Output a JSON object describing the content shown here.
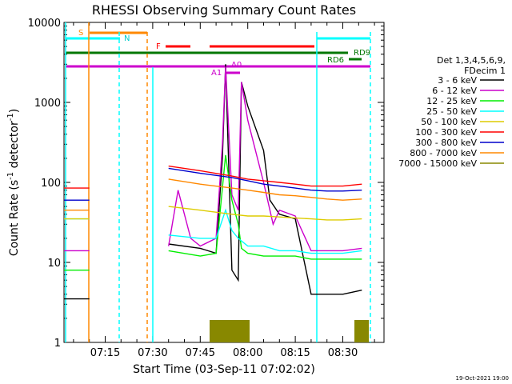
{
  "chart_data": {
    "type": "line",
    "title": "RHESSI Observing Summary Count Rates",
    "xlabel": "Start Time (03-Sep-11 07:02:02)",
    "ylabel_main": "Count Rate (s",
    "ylabel_sup1": "-1",
    "ylabel_mid": " detector",
    "ylabel_sup2": "-1",
    "ylabel_end": ")",
    "y_scale": "log",
    "ylim": [
      1,
      10000
    ],
    "xlim": [
      "07:02",
      "08:43"
    ],
    "grid": false,
    "x_ticks": [
      "07:15",
      "07:30",
      "07:45",
      "08:00",
      "08:15",
      "08:30"
    ],
    "y_ticks": [
      "1",
      "10",
      "100",
      "1000",
      "10000"
    ],
    "legend_header": [
      "Det 1,3,4,5,6,9,",
      "FDecim 1"
    ],
    "legend_position": "right",
    "timestamp": "19-Oct-2021 19:00",
    "series": [
      {
        "name": "3 - 6 keV",
        "color": "#000000",
        "x": [
          "07:02",
          "07:10",
          "07:28",
          "07:35",
          "07:45",
          "07:50",
          "07:52",
          "07:53",
          "07:55",
          "07:57",
          "07:58",
          "08:00",
          "08:05",
          "08:07",
          "08:10",
          "08:15",
          "08:20",
          "08:25",
          "08:30",
          "08:36"
        ],
        "values": [
          3.5,
          3.5,
          null,
          17,
          15,
          13,
          200,
          3000,
          8,
          6,
          1800,
          900,
          250,
          60,
          40,
          35,
          4,
          4,
          4,
          4.5
        ]
      },
      {
        "name": "6 - 12 keV",
        "color": "#cc00cc",
        "x": [
          "07:02",
          "07:10",
          "07:28",
          "07:35",
          "07:38",
          "07:42",
          "07:45",
          "07:50",
          "07:52",
          "07:53",
          "07:55",
          "07:57",
          "07:58",
          "08:00",
          "08:05",
          "08:08",
          "08:10",
          "08:15",
          "08:20",
          "08:25",
          "08:30",
          "08:36"
        ],
        "values": [
          14,
          14,
          null,
          16,
          80,
          20,
          16,
          20,
          300,
          2800,
          70,
          45,
          1800,
          600,
          100,
          30,
          45,
          38,
          14,
          14,
          14,
          15
        ]
      },
      {
        "name": "12 - 25 keV",
        "color": "#00ee00",
        "x": [
          "07:02",
          "07:10",
          "07:28",
          "07:35",
          "07:45",
          "07:50",
          "07:53",
          "07:55",
          "07:57",
          "07:58",
          "08:00",
          "08:05",
          "08:10",
          "08:15",
          "08:20",
          "08:25",
          "08:30",
          "08:36"
        ],
        "values": [
          8,
          8,
          null,
          14,
          12,
          13,
          220,
          60,
          30,
          15,
          13,
          12,
          12,
          12,
          11,
          11,
          11,
          11
        ]
      },
      {
        "name": "25 - 50 keV",
        "color": "#00ffff",
        "x": [
          "07:02",
          "07:10",
          "07:28",
          "07:35",
          "07:45",
          "07:50",
          "07:53",
          "07:55",
          "07:57",
          "08:00",
          "08:05",
          "08:10",
          "08:15",
          "08:20",
          "08:25",
          "08:30",
          "08:36"
        ],
        "values": [
          35,
          35,
          null,
          22,
          20,
          20,
          45,
          25,
          20,
          16,
          16,
          14,
          14,
          13,
          13,
          13,
          14
        ]
      },
      {
        "name": "50 - 100 keV",
        "color": "#ddcc00",
        "x": [
          "07:02",
          "07:10",
          "07:28",
          "07:35",
          "07:45",
          "07:55",
          "08:00",
          "08:05",
          "08:10",
          "08:15",
          "08:20",
          "08:25",
          "08:30",
          "08:36"
        ],
        "values": [
          35,
          35,
          null,
          50,
          45,
          40,
          38,
          38,
          37,
          36,
          35,
          34,
          34,
          35
        ]
      },
      {
        "name": "100 - 300 keV",
        "color": "#ff0000",
        "x": [
          "07:02",
          "07:10",
          "07:28",
          "07:35",
          "07:45",
          "07:55",
          "08:00",
          "08:05",
          "08:10",
          "08:15",
          "08:20",
          "08:25",
          "08:30",
          "08:36"
        ],
        "values": [
          85,
          85,
          null,
          160,
          140,
          120,
          110,
          105,
          100,
          95,
          90,
          90,
          90,
          95
        ]
      },
      {
        "name": "300 - 800 keV",
        "color": "#0000cc",
        "x": [
          "07:02",
          "07:10",
          "07:28",
          "07:35",
          "07:45",
          "07:55",
          "08:00",
          "08:05",
          "08:10",
          "08:15",
          "08:20",
          "08:25",
          "08:30",
          "08:36"
        ],
        "values": [
          60,
          60,
          null,
          150,
          130,
          115,
          105,
          95,
          90,
          85,
          80,
          78,
          78,
          80
        ]
      },
      {
        "name": "800 - 7000 keV",
        "color": "#ff8800",
        "x": [
          "07:02",
          "07:10",
          "07:28",
          "07:35",
          "07:45",
          "07:55",
          "08:00",
          "08:05",
          "08:10",
          "08:15",
          "08:20",
          "08:25",
          "08:30",
          "08:36"
        ],
        "values": [
          45,
          45,
          null,
          110,
          95,
          85,
          80,
          75,
          70,
          68,
          65,
          62,
          60,
          62
        ]
      },
      {
        "name": "7000 - 15000 keV",
        "color": "#888800",
        "x": [],
        "values": []
      }
    ]
  },
  "flags": {
    "S": "S",
    "N": "N",
    "F": "F",
    "A0": "A0",
    "A1": "A1",
    "RD6": "RD6",
    "RD9": "RD9"
  }
}
